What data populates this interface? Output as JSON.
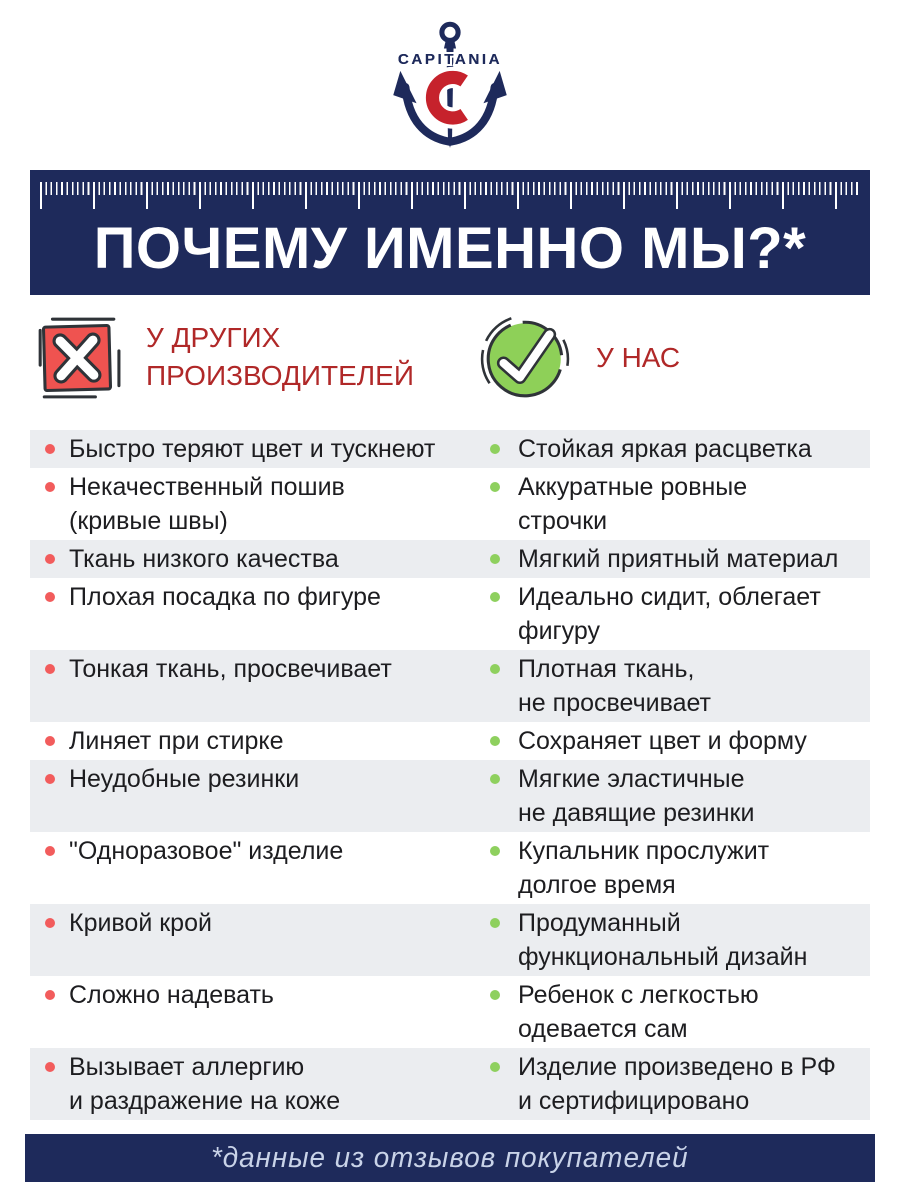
{
  "logo": {
    "brand": "CAPITANIA",
    "icon": "anchor-icon"
  },
  "title": {
    "text": "ПОЧЕМУ ИМЕННО МЫ?*"
  },
  "comparison": {
    "left_header": {
      "label": "У ДРУГИХ\nПРОИЗВОДИТЕЛЕЙ",
      "icon": "x-mark-icon"
    },
    "right_header": {
      "label": "У НАС",
      "icon": "checkmark-icon"
    },
    "rows": [
      {
        "left": "Быстро теряют цвет и тускнеют",
        "right": "Стойкая яркая расцветка"
      },
      {
        "left": "Некачественный пошив\n(кривые швы)",
        "right": "Аккуратные ровные\nстрочки"
      },
      {
        "left": "Ткань низкого качества",
        "right": "Мягкий приятный материал"
      },
      {
        "left": "Плохая посадка по фигуре",
        "right": "Идеально сидит, облегает\nфигуру"
      },
      {
        "left": "Тонкая ткань, просвечивает",
        "right": "Плотная ткань,\nне просвечивает"
      },
      {
        "left": "Линяет при стирке",
        "right": "Сохраняет цвет и форму"
      },
      {
        "left": "Неудобные резинки",
        "right": "Мягкие эластичные\nне давящие резинки"
      },
      {
        "left": "\"Одноразовое\" изделие",
        "right": "Купальник прослужит\nдолгое время"
      },
      {
        "left": "Кривой крой",
        "right": "Продуманный\nфункциональный дизайн"
      },
      {
        "left": "Сложно надевать",
        "right": "Ребенок с легкостью\nодевается сам"
      },
      {
        "left": "Вызывает аллергию\nи раздражение на коже",
        "right": "Изделие произведено в РФ\nи сертифицировано"
      }
    ]
  },
  "footer": {
    "note": "*данные из отзывов покупателей"
  },
  "colors": {
    "navy": "#1e2a5b",
    "header_red": "#b02828",
    "coral_red": "#ef5350",
    "green": "#8ed058",
    "bullet_red": "#f25c5c",
    "bullet_green": "#8ed05e",
    "row_shade": "#ebedf0",
    "footer_text": "#c9d3e8",
    "body_text": "#1d1d20"
  }
}
